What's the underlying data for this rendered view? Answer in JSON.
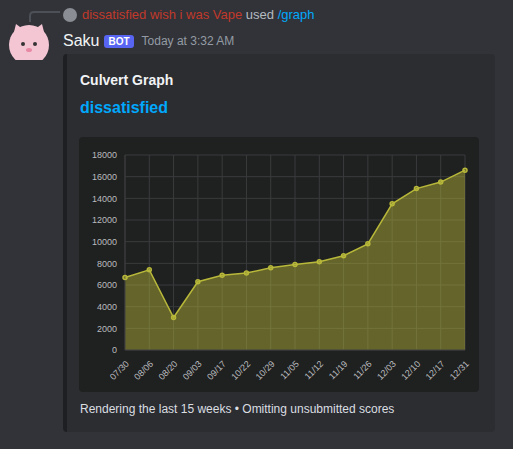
{
  "header": {
    "reply": {
      "user": "dissatisfied wish i was Vape",
      "action": "used",
      "command": "/graph"
    },
    "author": "Saku",
    "badge": "BOT",
    "timestamp": "Today at 3:32 AM"
  },
  "embed": {
    "title": "Culvert Graph",
    "subtitle": "dissatisfied",
    "footer": "Rendering the last 15 weeks • Omitting unsubmitted scores"
  },
  "chart_data": {
    "type": "area",
    "categories": [
      "07/30",
      "08/06",
      "08/20",
      "09/03",
      "09/17",
      "10/22",
      "10/29",
      "11/05",
      "11/12",
      "11/19",
      "11/26",
      "12/03",
      "12/10",
      "12/17",
      "12/31"
    ],
    "values": [
      6700,
      7400,
      3000,
      6300,
      6900,
      7100,
      7600,
      7900,
      8150,
      8700,
      9800,
      13500,
      14900,
      15500,
      16600
    ],
    "color": "#b8b83a",
    "ylim": [
      0,
      18000
    ],
    "yticks": [
      0,
      2000,
      4000,
      6000,
      8000,
      10000,
      12000,
      14000,
      16000,
      18000
    ],
    "grid": true,
    "marker": "circle"
  }
}
